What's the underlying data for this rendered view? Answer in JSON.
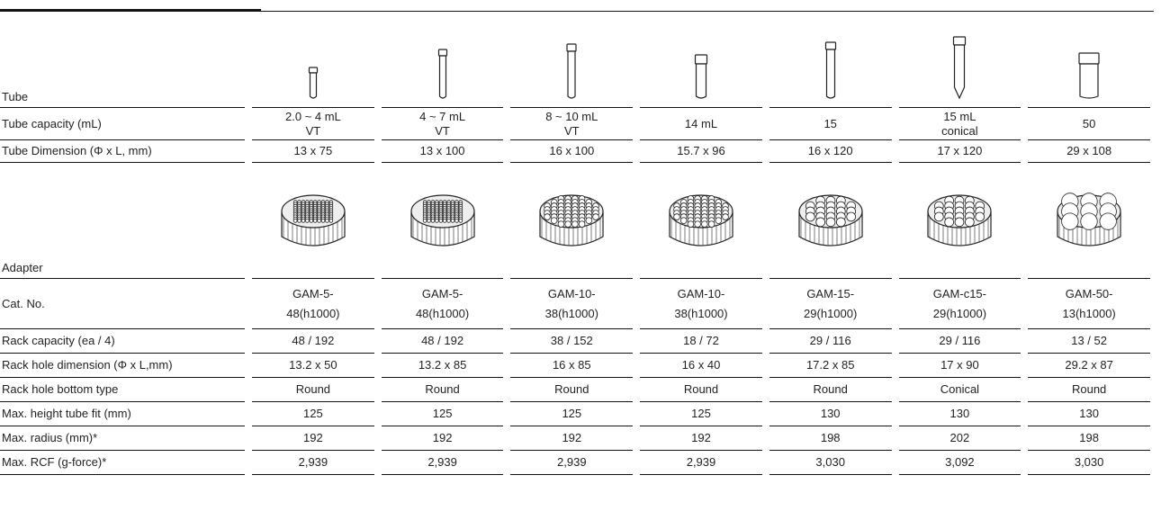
{
  "table": {
    "rows": [
      {
        "label": "Tube"
      },
      {
        "label": "Tube capacity (mL)",
        "cells": [
          "2.0 ~ 4 mL\nVT",
          "4 ~ 7 mL\nVT",
          "8 ~ 10 mL\nVT",
          "14 mL",
          "15",
          "15 mL\nconical",
          "50"
        ]
      },
      {
        "label": "Tube Dimension (Φ x L, mm)",
        "cells": [
          "13 x 75",
          "13 x 100",
          "16 x 100",
          "15.7 x 96",
          "16 x 120",
          "17 x 120",
          "29 x 108"
        ]
      },
      {
        "label": "Adapter"
      },
      {
        "label": "Cat. No.",
        "cells": [
          "GAM-5-\n48(h1000)",
          "GAM-5-\n48(h1000)",
          "GAM-10-\n38(h1000)",
          "GAM-10-\n38(h1000)",
          "GAM-15-\n29(h1000)",
          "GAM-c15-\n29(h1000)",
          "GAM-50-\n13(h1000)"
        ]
      },
      {
        "label": "Rack capacity (ea / 4)",
        "cells": [
          "48 / 192",
          "48 / 192",
          "38 / 152",
          "18 / 72",
          "29 / 116",
          "29 / 116",
          "13 / 52"
        ]
      },
      {
        "label": "Rack hole dimension (Φ x L,mm)",
        "cells": [
          "13.2 x 50",
          "13.2 x 85",
          "16 x 85",
          "16 x 40",
          "17.2 x 85",
          "17 x 90",
          "29.2 x 87"
        ]
      },
      {
        "label": "Rack hole bottom type",
        "cells": [
          "Round",
          "Round",
          "Round",
          "Round",
          "Round",
          "Conical",
          "Round"
        ]
      },
      {
        "label": "Max. height tube fit (mm)",
        "cells": [
          "125",
          "125",
          "125",
          "125",
          "130",
          "130",
          "130"
        ]
      },
      {
        "label": "Max. radius (mm)*",
        "cells": [
          "192",
          "192",
          "192",
          "192",
          "198",
          "202",
          "198"
        ]
      },
      {
        "label": "Max. RCF (g-force)*",
        "cells": [
          "2,939",
          "2,939",
          "2,939",
          "2,939",
          "3,030",
          "3,092",
          "3,030"
        ]
      }
    ]
  }
}
